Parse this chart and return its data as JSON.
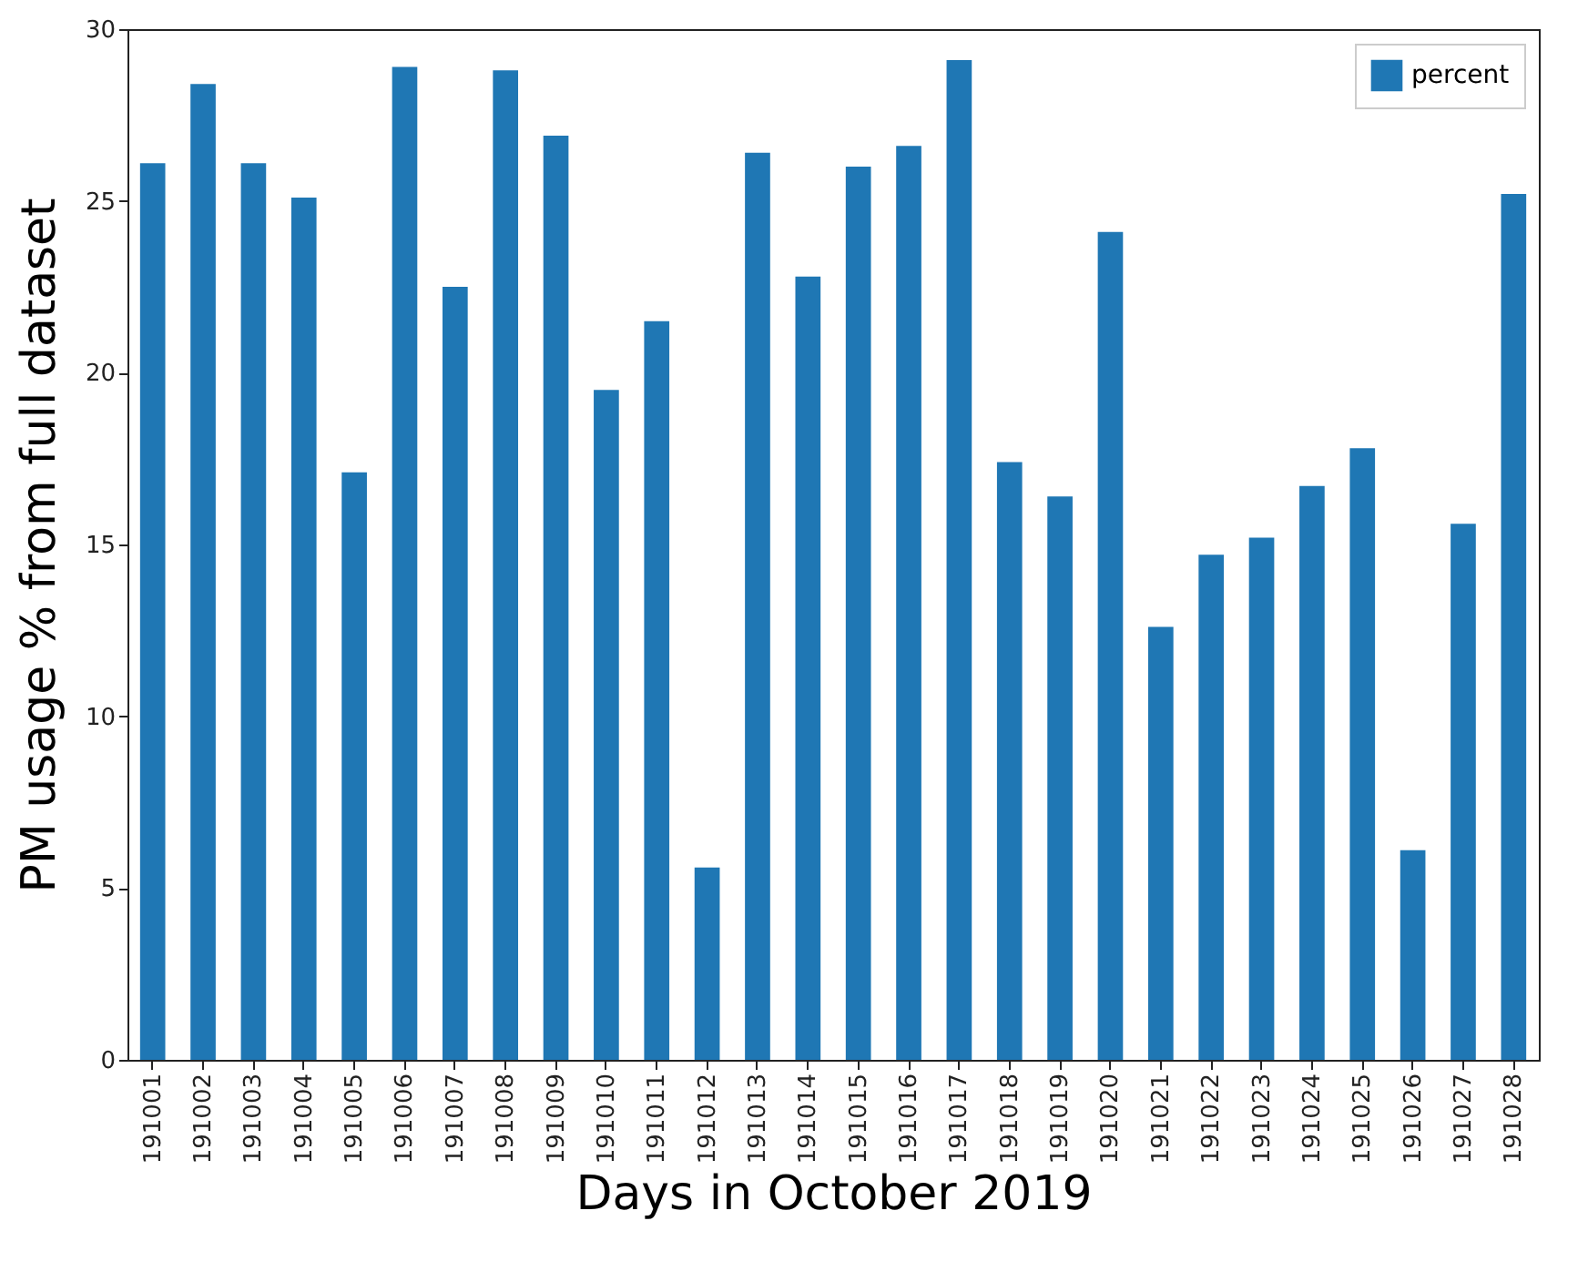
{
  "chart_data": {
    "type": "bar",
    "xlabel": "Days in October 2019",
    "ylabel": "PM usage % from full dataset",
    "categories": [
      "191001",
      "191002",
      "191003",
      "191004",
      "191005",
      "191006",
      "191007",
      "191008",
      "191009",
      "191010",
      "191011",
      "191012",
      "191013",
      "191014",
      "191015",
      "191016",
      "191017",
      "191018",
      "191019",
      "191020",
      "191021",
      "191022",
      "191023",
      "191024",
      "191025",
      "191026",
      "191027",
      "191028"
    ],
    "series": [
      {
        "name": "percent",
        "color": "#1f77b4",
        "values": [
          26.1,
          28.4,
          26.1,
          25.1,
          17.1,
          28.9,
          22.5,
          28.8,
          26.9,
          19.5,
          21.5,
          5.6,
          26.4,
          22.8,
          26.0,
          26.6,
          29.1,
          17.4,
          16.4,
          24.1,
          12.6,
          14.7,
          15.2,
          16.7,
          17.8,
          6.1,
          15.6,
          25.2
        ]
      }
    ],
    "ylim": [
      0,
      30
    ],
    "yticks": [
      0,
      5,
      10,
      15,
      20,
      25,
      30
    ],
    "grid": false,
    "legend": "top right"
  }
}
